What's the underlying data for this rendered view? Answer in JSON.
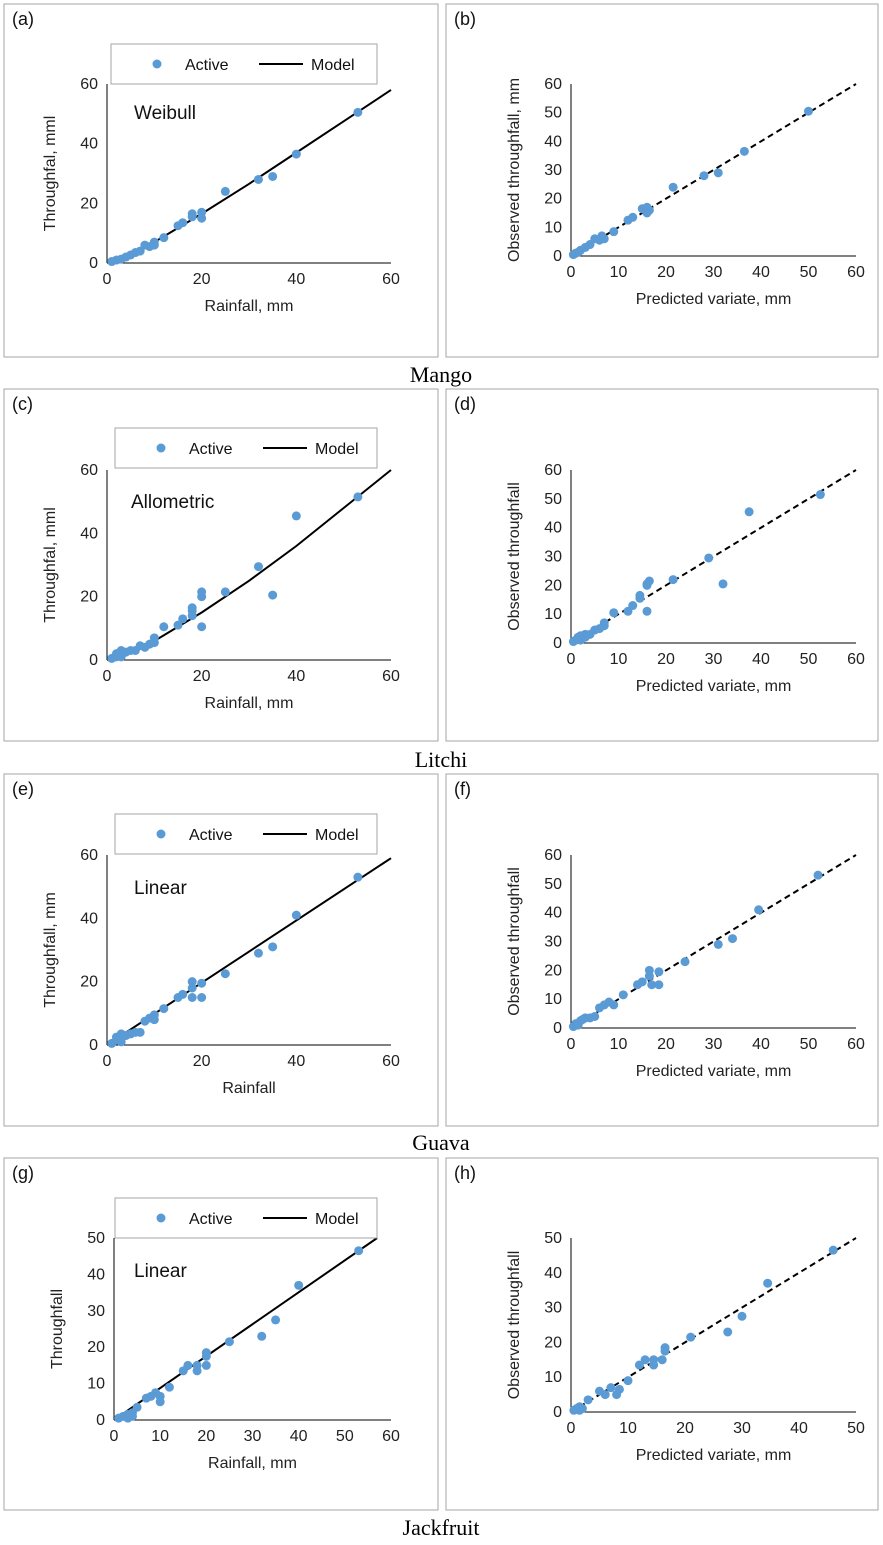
{
  "colors": {
    "points": "#5b9bd5",
    "line": "#000000",
    "frame": "#a6a6a6"
  },
  "captions": [
    "Mango",
    "Litchi",
    "Guava",
    "Jackfruit"
  ],
  "chart_data": [
    {
      "panel": "(a)",
      "type": "scatter",
      "annotation": "Weibull",
      "xlabel": "Rainfall, mm",
      "ylabel": "Throughfal, mml",
      "xlim": [
        0,
        60
      ],
      "ylim": [
        0,
        60
      ],
      "xticks": [
        0,
        20,
        40,
        60
      ],
      "yticks": [
        0,
        20,
        40,
        60
      ],
      "legend": {
        "placement": "top",
        "points_label": "Active",
        "line_label": "Model"
      },
      "series": [
        {
          "name": "Active",
          "kind": "points",
          "x": [
            1,
            2,
            3,
            4,
            5,
            6,
            7,
            8,
            9,
            10,
            10,
            12,
            15,
            16,
            18,
            18,
            20,
            20,
            25,
            32,
            35,
            40,
            53
          ],
          "y": [
            0.5,
            1,
            1.3,
            2,
            2.7,
            3.5,
            4,
            6,
            5.5,
            7,
            6,
            8.5,
            12.5,
            13.5,
            16.5,
            15.5,
            17,
            15,
            24,
            28,
            29,
            36.5,
            50.5
          ]
        },
        {
          "name": "Model",
          "kind": "line",
          "x": [
            0,
            10,
            20,
            30,
            40,
            50,
            60
          ],
          "y": [
            0,
            7,
            16.5,
            26.5,
            37,
            47.5,
            58
          ]
        }
      ]
    },
    {
      "panel": "(b)",
      "type": "scatter",
      "xlabel": "Predicted variate, mm",
      "ylabel": "Observed throughfall, mm",
      "xlim": [
        0,
        60
      ],
      "ylim": [
        0,
        60
      ],
      "xticks": [
        0,
        10,
        20,
        30,
        40,
        50,
        60
      ],
      "yticks": [
        0,
        10,
        20,
        30,
        40,
        50,
        60
      ],
      "series": [
        {
          "kind": "points",
          "x": [
            0.5,
            1,
            1.5,
            2,
            3,
            4,
            5,
            6,
            6.5,
            7,
            9,
            12,
            13,
            15,
            16,
            16,
            16.5,
            21.5,
            28,
            31,
            36.5,
            50
          ],
          "y": [
            0.5,
            1,
            1.3,
            2,
            3,
            4,
            6,
            5.5,
            7,
            6,
            8.5,
            12.5,
            13.5,
            16.5,
            15,
            17,
            16,
            24,
            28,
            29,
            36.5,
            50.5
          ]
        },
        {
          "kind": "reference",
          "x": [
            0,
            60
          ],
          "y": [
            0,
            60
          ]
        }
      ]
    },
    {
      "panel": "(c)",
      "type": "scatter",
      "annotation": "Allometric",
      "xlabel": "Rainfall, mm",
      "ylabel": "Throughfal, mml",
      "xlim": [
        0,
        60
      ],
      "ylim": [
        0,
        60
      ],
      "xticks": [
        0,
        20,
        40,
        60
      ],
      "yticks": [
        0,
        20,
        40,
        60
      ],
      "legend": {
        "placement": "top",
        "points_label": "Active",
        "line_label": "Model"
      },
      "series": [
        {
          "name": "Active",
          "kind": "points",
          "x": [
            1,
            2,
            2,
            3,
            3,
            3,
            4,
            5,
            6,
            7,
            8,
            9,
            10,
            10,
            12,
            15,
            16,
            18,
            18,
            18,
            20,
            20,
            20,
            25,
            32,
            35,
            40,
            53
          ],
          "y": [
            0.5,
            1,
            2,
            1,
            2.5,
            3,
            2.5,
            3,
            3,
            4.5,
            4,
            5,
            5.5,
            7,
            10.5,
            11,
            13,
            14,
            15.5,
            16.5,
            10.5,
            20,
            21.5,
            21.5,
            29.5,
            20.5,
            45.5,
            51.5
          ]
        },
        {
          "name": "Model",
          "kind": "line",
          "x": [
            0,
            10,
            20,
            30,
            40,
            50,
            60
          ],
          "y": [
            0,
            6,
            15,
            25,
            36,
            48,
            60
          ]
        }
      ]
    },
    {
      "panel": "(d)",
      "type": "scatter",
      "xlabel": "Predicted variate, mm",
      "ylabel": "Observed throughfall",
      "xlim": [
        0,
        60
      ],
      "ylim": [
        0,
        60
      ],
      "xticks": [
        0,
        10,
        20,
        30,
        40,
        50,
        60
      ],
      "yticks": [
        0,
        10,
        20,
        30,
        40,
        50,
        60
      ],
      "series": [
        {
          "kind": "points",
          "x": [
            0.5,
            1,
            1.5,
            2,
            2,
            3,
            3,
            4,
            5,
            6,
            7,
            7,
            9,
            12,
            13,
            14.5,
            14.5,
            16,
            16,
            16.5,
            16,
            21.5,
            29,
            32,
            37.5,
            52.5
          ],
          "y": [
            0.5,
            1,
            2,
            2.5,
            1,
            3,
            2,
            3,
            4.5,
            5,
            6,
            7,
            10.5,
            11,
            13,
            15.5,
            16.5,
            11,
            20,
            21.5,
            20.5,
            22,
            29.5,
            20.5,
            45.5,
            51.5
          ]
        },
        {
          "kind": "reference",
          "x": [
            0,
            60
          ],
          "y": [
            0,
            60
          ]
        }
      ]
    },
    {
      "panel": "(e)",
      "type": "scatter",
      "annotation": "Linear",
      "xlabel": "Rainfall",
      "ylabel": "Throughfall, mm",
      "xlim": [
        0,
        60
      ],
      "ylim": [
        0,
        60
      ],
      "xticks": [
        0,
        20,
        40,
        60
      ],
      "yticks": [
        0,
        20,
        40,
        60
      ],
      "legend": {
        "placement": "top",
        "points_label": "Active",
        "line_label": "Model"
      },
      "series": [
        {
          "name": "Active",
          "kind": "points",
          "x": [
            1,
            2,
            2,
            3,
            3,
            4,
            5,
            6,
            7,
            8,
            9,
            10,
            10,
            12,
            15,
            16,
            18,
            18,
            18,
            20,
            20,
            25,
            32,
            35,
            40,
            53
          ],
          "y": [
            0.5,
            1.5,
            2.5,
            1,
            3.5,
            3,
            3.5,
            4,
            4,
            7.5,
            8.5,
            8,
            9.5,
            11.5,
            15,
            16,
            15,
            18,
            20,
            15,
            19.5,
            22.5,
            29,
            31,
            41,
            53
          ]
        },
        {
          "name": "Model",
          "kind": "line",
          "x": [
            0,
            60
          ],
          "y": [
            0,
            59
          ]
        }
      ]
    },
    {
      "panel": "(f)",
      "type": "scatter",
      "xlabel": "Predicted variate, mm",
      "ylabel": "Observed throughfall",
      "xlim": [
        0,
        60
      ],
      "ylim": [
        0,
        60
      ],
      "xticks": [
        0,
        10,
        20,
        30,
        40,
        50,
        60
      ],
      "yticks": [
        0,
        10,
        20,
        30,
        40,
        50,
        60
      ],
      "series": [
        {
          "kind": "points",
          "x": [
            0.5,
            1,
            1.5,
            2,
            2.5,
            3,
            4,
            5,
            6,
            7,
            8,
            9,
            11,
            14,
            15,
            16.5,
            16.5,
            17,
            18.5,
            18.5,
            24,
            31,
            34,
            39.5,
            52
          ],
          "y": [
            0.5,
            1.5,
            1,
            2.5,
            3,
            3.5,
            3.5,
            4,
            7,
            8,
            9,
            8,
            11.5,
            15,
            16,
            18,
            20,
            15,
            19.5,
            15,
            23,
            29,
            31,
            41,
            53
          ]
        },
        {
          "kind": "reference",
          "x": [
            0,
            60
          ],
          "y": [
            0,
            60
          ]
        }
      ]
    },
    {
      "panel": "(g)",
      "type": "scatter",
      "annotation": "Linear",
      "xlabel": "Rainfall, mm",
      "ylabel": "Throughfall",
      "xlim": [
        0,
        60
      ],
      "ylim": [
        0,
        50
      ],
      "xticks": [
        0,
        10,
        20,
        30,
        40,
        50,
        60
      ],
      "yticks": [
        0,
        10,
        20,
        30,
        40,
        50
      ],
      "legend": {
        "placement": "top",
        "points_label": "Active",
        "line_label": "Model"
      },
      "series": [
        {
          "name": "Active",
          "kind": "points",
          "x": [
            1,
            2,
            3,
            3,
            4,
            4,
            5,
            7,
            8,
            9,
            10,
            10,
            12,
            15,
            16,
            18,
            18,
            20,
            20,
            20,
            25,
            32,
            35,
            40,
            53
          ],
          "y": [
            0.5,
            1,
            1.5,
            0.5,
            1,
            2,
            3.5,
            6,
            6.5,
            7.5,
            5,
            6.5,
            9,
            13.5,
            15,
            13.5,
            15,
            15,
            17.5,
            18.5,
            21.5,
            23,
            27.5,
            37,
            46.5
          ]
        },
        {
          "name": "Model",
          "kind": "line",
          "x": [
            0,
            57
          ],
          "y": [
            0,
            50
          ]
        }
      ]
    },
    {
      "panel": "(h)",
      "type": "scatter",
      "xlabel": "Predicted variate, mm",
      "ylabel": "Observed throughfall",
      "xlim": [
        0,
        50
      ],
      "ylim": [
        0,
        50
      ],
      "xticks": [
        0,
        10,
        20,
        30,
        40,
        50
      ],
      "yticks": [
        0,
        10,
        20,
        30,
        40,
        50
      ],
      "series": [
        {
          "kind": "points",
          "x": [
            0.5,
            1,
            1.5,
            1.5,
            2,
            3,
            5,
            6,
            7,
            8,
            8.5,
            10,
            12,
            13,
            14.5,
            14.5,
            16,
            16.5,
            16.5,
            21,
            27.5,
            30,
            34.5,
            46
          ],
          "y": [
            0.5,
            1,
            1.5,
            0.5,
            1,
            3.5,
            6,
            5,
            7,
            5,
            6.5,
            9,
            13.5,
            15,
            13.5,
            15,
            15,
            17.5,
            18.5,
            21.5,
            23,
            27.5,
            37,
            46.5
          ]
        },
        {
          "kind": "reference",
          "x": [
            0,
            50
          ],
          "y": [
            0,
            50
          ]
        }
      ]
    }
  ]
}
